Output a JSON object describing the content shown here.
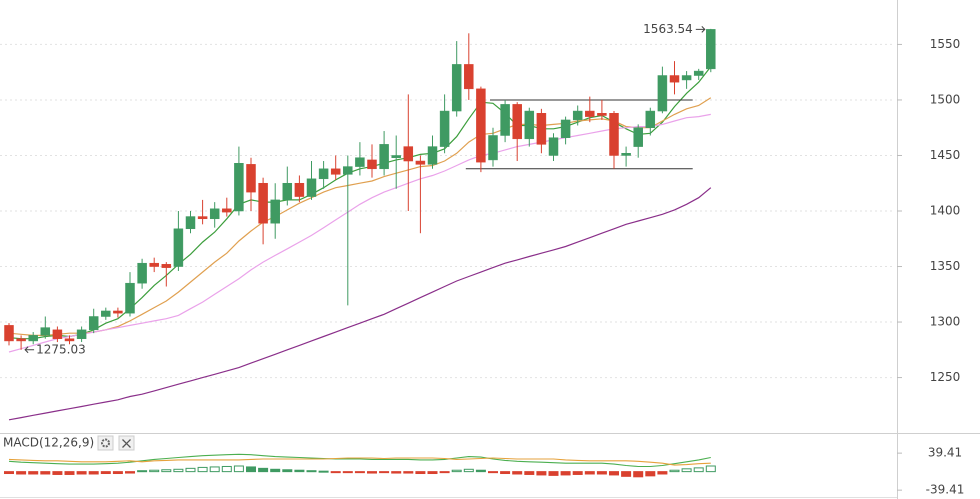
{
  "chart_data": [
    {
      "type": "candlestick",
      "open": [
        1297,
        1285,
        1283,
        1288,
        1293,
        1285,
        1285,
        1293,
        1305,
        1310,
        1308,
        1335,
        1353,
        1352,
        1350,
        1384,
        1395,
        1393,
        1402,
        1400,
        1442,
        1425,
        1389,
        1410,
        1425,
        1413,
        1429,
        1438,
        1433,
        1440,
        1446,
        1438,
        1448,
        1458,
        1445,
        1442,
        1458,
        1490,
        1532,
        1510,
        1446,
        1468,
        1496,
        1465,
        1488,
        1450,
        1466,
        1482,
        1490,
        1488,
        1488,
        1450,
        1458,
        1475,
        1490,
        1522,
        1518,
        1522,
        1528
      ],
      "high": [
        1299,
        1288,
        1291,
        1305,
        1296,
        1288,
        1296,
        1312,
        1313,
        1313,
        1345,
        1357,
        1358,
        1354,
        1400,
        1400,
        1410,
        1408,
        1412,
        1458,
        1448,
        1430,
        1425,
        1440,
        1432,
        1445,
        1445,
        1450,
        1450,
        1462,
        1460,
        1472,
        1468,
        1505,
        1450,
        1468,
        1505,
        1553,
        1560,
        1512,
        1475,
        1500,
        1498,
        1493,
        1492,
        1470,
        1485,
        1495,
        1503,
        1500,
        1490,
        1458,
        1478,
        1493,
        1530,
        1535,
        1526,
        1528,
        1564
      ],
      "low": [
        1279,
        1275.03,
        1280,
        1285,
        1282,
        1280,
        1282,
        1290,
        1302,
        1304,
        1305,
        1330,
        1345,
        1332,
        1346,
        1380,
        1388,
        1385,
        1395,
        1396,
        1400,
        1370,
        1375,
        1405,
        1408,
        1410,
        1420,
        1428,
        1315,
        1432,
        1430,
        1432,
        1420,
        1400,
        1380,
        1438,
        1452,
        1485,
        1500,
        1435,
        1440,
        1462,
        1445,
        1458,
        1452,
        1445,
        1460,
        1477,
        1480,
        1482,
        1438,
        1440,
        1448,
        1468,
        1488,
        1505,
        1510,
        1518,
        1525
      ],
      "close": [
        1283,
        1283,
        1288,
        1295,
        1285,
        1283,
        1293,
        1305,
        1310,
        1308,
        1335,
        1353,
        1350,
        1349,
        1384,
        1395,
        1393,
        1402,
        1399,
        1443,
        1417,
        1389,
        1410,
        1425,
        1413,
        1429,
        1438,
        1433,
        1440,
        1448,
        1438,
        1460,
        1450,
        1445,
        1442,
        1458,
        1490,
        1532,
        1510,
        1444,
        1468,
        1496,
        1465,
        1490,
        1460,
        1466,
        1482,
        1490,
        1485,
        1486,
        1450,
        1452,
        1475,
        1490,
        1522,
        1516,
        1522,
        1526,
        1563.54
      ],
      "up_color": "#3f9a62",
      "down_color": "#d9412f",
      "moving_averages": [
        {
          "color": "#3c9e3c",
          "values": [
            1286,
            1285,
            1285,
            1287,
            1288,
            1287,
            1289,
            1293,
            1299,
            1303,
            1312,
            1322,
            1333,
            1342,
            1352,
            1361,
            1372,
            1381,
            1393,
            1406,
            1410,
            1408,
            1408,
            1410,
            1410,
            1415,
            1421,
            1428,
            1434,
            1438,
            1440,
            1443,
            1446,
            1448,
            1451,
            1452,
            1456,
            1467,
            1483,
            1498,
            1497,
            1488,
            1477,
            1477,
            1474,
            1474,
            1476,
            1480,
            1484,
            1486,
            1480,
            1474,
            1469,
            1470,
            1480,
            1494,
            1506,
            1516,
            1530
          ]
        },
        {
          "color": "#e0a050",
          "values": [
            1290,
            1289,
            1288,
            1288,
            1289,
            1290,
            1290,
            1291,
            1293,
            1296,
            1301,
            1307,
            1313,
            1319,
            1327,
            1336,
            1345,
            1354,
            1362,
            1373,
            1382,
            1390,
            1395,
            1401,
            1407,
            1412,
            1417,
            1421,
            1423,
            1425,
            1427,
            1431,
            1434,
            1437,
            1440,
            1441,
            1445,
            1452,
            1462,
            1469,
            1470,
            1474,
            1478,
            1478,
            1477,
            1478,
            1479,
            1481,
            1482,
            1483,
            1481,
            1476,
            1475,
            1475,
            1481,
            1487,
            1492,
            1495,
            1502
          ]
        },
        {
          "color": "#eaa2ea",
          "values": [
            1273,
            1276,
            1279,
            1282,
            1285,
            1287,
            1289,
            1291,
            1293,
            1295,
            1297,
            1299,
            1301,
            1303,
            1306,
            1312,
            1318,
            1325,
            1332,
            1339,
            1347,
            1354,
            1360,
            1366,
            1372,
            1378,
            1385,
            1392,
            1399,
            1406,
            1412,
            1417,
            1421,
            1425,
            1429,
            1432,
            1436,
            1441,
            1446,
            1450,
            1452,
            1455,
            1458,
            1460,
            1462,
            1464,
            1466,
            1468,
            1470,
            1472,
            1474,
            1475,
            1476,
            1476,
            1478,
            1481,
            1484,
            1485,
            1487
          ]
        },
        {
          "color": "#8a2f8a",
          "values": [
            1212,
            1214,
            1216,
            1218,
            1220,
            1222,
            1224,
            1226,
            1228,
            1230,
            1233,
            1235,
            1238,
            1241,
            1244,
            1247,
            1250,
            1253,
            1256,
            1259,
            1263,
            1267,
            1271,
            1275,
            1279,
            1283,
            1287,
            1291,
            1295,
            1299,
            1303,
            1307,
            1312,
            1317,
            1322,
            1327,
            1332,
            1337,
            1341,
            1345,
            1349,
            1353,
            1356,
            1359,
            1362,
            1365,
            1368,
            1372,
            1376,
            1380,
            1384,
            1388,
            1391,
            1394,
            1397,
            1401,
            1406,
            1412,
            1421
          ]
        }
      ],
      "hlines": [
        {
          "y": 1500,
          "x": [
            40,
            57
          ]
        },
        {
          "y": 1438,
          "x": [
            38,
            57
          ]
        }
      ],
      "ylim": [
        1201,
        1590
      ],
      "yticks": [
        1250,
        1300,
        1350,
        1400,
        1450,
        1500,
        1550
      ],
      "grid": true
    },
    {
      "type": "macd",
      "title": "MACD(12,26,9)",
      "histogram": [
        -4,
        -5,
        -5,
        -5,
        -6,
        -6,
        -5,
        -5,
        -4,
        -4,
        -3,
        2,
        3,
        4,
        5,
        7,
        9,
        10,
        11,
        12,
        10,
        7,
        5,
        4,
        3,
        2,
        1,
        -1,
        -2,
        -2,
        -3,
        -2,
        -3,
        -3,
        -4,
        -4,
        -2,
        3,
        5,
        3,
        -2,
        -4,
        -5,
        -6,
        -7,
        -8,
        -7,
        -6,
        -5,
        -5,
        -7,
        -10,
        -11,
        -9,
        -5,
        3,
        6,
        8,
        12
      ],
      "lines": [
        {
          "color": "#4caf50",
          "values": [
            22,
            20,
            19,
            18,
            17,
            16,
            16,
            16,
            17,
            18,
            20,
            23,
            26,
            28,
            30,
            32,
            34,
            35,
            36,
            37,
            36,
            34,
            32,
            31,
            30,
            29,
            28,
            27,
            27,
            27,
            26,
            26,
            26,
            26,
            25,
            25,
            26,
            29,
            32,
            31,
            27,
            24,
            22,
            21,
            20,
            19,
            18,
            18,
            18,
            18,
            16,
            13,
            11,
            11,
            13,
            17,
            21,
            25,
            30
          ]
        },
        {
          "color": "#e6a23c",
          "values": [
            26,
            25,
            24,
            23,
            23,
            22,
            21,
            21,
            21,
            22,
            23,
            21,
            23,
            24,
            25,
            25,
            25,
            25,
            25,
            25,
            26,
            27,
            27,
            27,
            27,
            27,
            27,
            28,
            29,
            29,
            29,
            28,
            29,
            29,
            29,
            29,
            28,
            26,
            27,
            28,
            29,
            28,
            27,
            27,
            27,
            27,
            25,
            24,
            23,
            23,
            23,
            23,
            22,
            20,
            18,
            14,
            15,
            17,
            18
          ]
        }
      ],
      "up_color": "#3f9a62",
      "down_color": "#d9412f",
      "ylim": [
        -54,
        78
      ],
      "yticks": [
        39.41,
        -39.41
      ]
    }
  ]
}
